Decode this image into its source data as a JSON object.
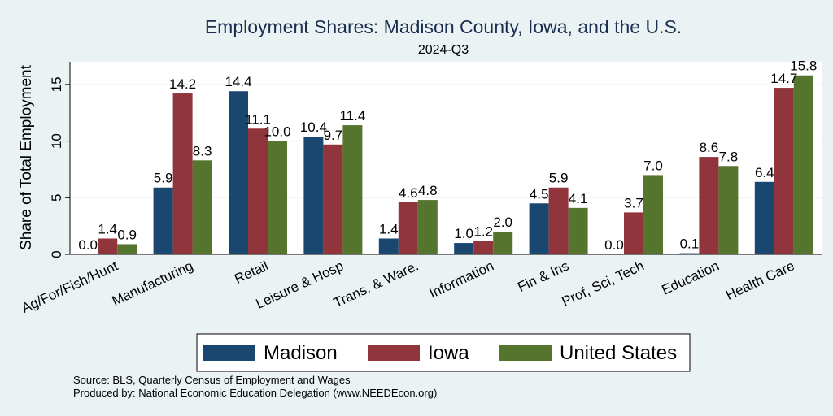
{
  "chart_data": {
    "type": "bar",
    "title": "Employment Shares: Madison County, Iowa, and the U.S.",
    "subtitle": "2024-Q3",
    "xlabel": "",
    "ylabel": "Share of Total Employment",
    "ylim": [
      0,
      17
    ],
    "yticks": [
      0,
      5,
      10,
      15
    ],
    "grid": true,
    "legend_position": "bottom",
    "categories": [
      "Ag/For/Fish/Hunt",
      "Manufacturing",
      "Retail",
      "Leisure & Hosp",
      "Trans. & Ware.",
      "Information",
      "Fin & Ins",
      "Prof, Sci, Tech",
      "Education",
      "Health Care"
    ],
    "series": [
      {
        "name": "Madison",
        "color": "#1a476f",
        "values": [
          0.0,
          5.9,
          14.4,
          10.4,
          1.4,
          1.0,
          4.5,
          0.0,
          0.1,
          6.4
        ]
      },
      {
        "name": "Iowa",
        "color": "#90353b",
        "values": [
          1.4,
          14.2,
          11.1,
          9.7,
          4.6,
          1.2,
          5.9,
          3.7,
          8.6,
          14.7
        ]
      },
      {
        "name": "United States",
        "color": "#55752f",
        "values": [
          0.9,
          8.3,
          10.0,
          11.4,
          4.8,
          2.0,
          4.1,
          7.0,
          7.8,
          15.8
        ]
      }
    ],
    "notes": [
      "Source: BLS, Quarterly Census of Employment and Wages",
      "Produced by: National Economic Education Delegation (www.NEEDEcon.org)"
    ]
  }
}
